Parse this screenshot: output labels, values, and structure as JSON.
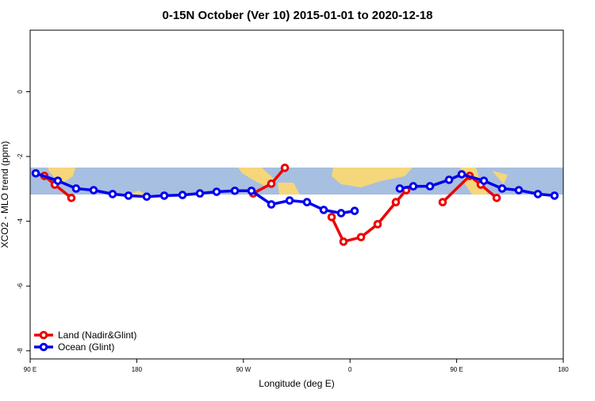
{
  "chart_data": {
    "type": "line",
    "title": "0-15N October (Ver 10)   2015-01-01 to 2020-12-18",
    "x_label": "Longitude (deg E)",
    "y_label": "XCO2 - MLO trend (ppm)",
    "xlim": [
      90,
      540
    ],
    "xticks": [
      {
        "value": 90,
        "label": "90 E"
      },
      {
        "value": 180,
        "label": "180"
      },
      {
        "value": 270,
        "label": "90 W"
      },
      {
        "value": 360,
        "label": "0"
      },
      {
        "value": 450,
        "label": "90 E"
      },
      {
        "value": 540,
        "label": "180"
      }
    ],
    "ylim": [
      -8.25,
      1.9
    ],
    "yticks": [
      0,
      -2,
      -4,
      -6,
      -8
    ],
    "legend": "bottom-left",
    "series": [
      {
        "name": "Land (Nadir&Glint)",
        "color": "#ee0000",
        "x": [
          102,
          110.8,
          124.8,
          null,
          278.2,
          293.6,
          305,
          null,
          344.5,
          354.5,
          369.3,
          383.3,
          398.7,
          407.4,
          null,
          438.2,
          461,
          470.4,
          483.8
        ],
        "values": [
          -2.6,
          -2.87,
          -3.28,
          null,
          -3.14,
          -2.84,
          -2.35,
          null,
          -3.87,
          -4.63,
          -4.49,
          -4.09,
          -3.41,
          -3.04,
          null,
          -3.41,
          -2.6,
          -2.87,
          -3.28
        ]
      },
      {
        "name": "Ocean (Glint)",
        "color": "#0000ee",
        "x": [
          94.7,
          113.4,
          128.8,
          143.6,
          159.6,
          173,
          188.4,
          203.2,
          218.6,
          233.3,
          247.4,
          262.8,
          276.8,
          293.6,
          309,
          323.7,
          337.8,
          352.5,
          363.9,
          null,
          402,
          413.4,
          427.5,
          443.6,
          454.3,
          473,
          488.4,
          502.5,
          518.6,
          532.6
        ],
        "values": [
          -2.52,
          -2.75,
          -2.99,
          -3.04,
          -3.16,
          -3.21,
          -3.24,
          -3.21,
          -3.19,
          -3.14,
          -3.09,
          -3.06,
          -3.06,
          -3.48,
          -3.36,
          -3.41,
          -3.65,
          -3.75,
          -3.68,
          null,
          -2.99,
          -2.92,
          -2.92,
          -2.72,
          -2.55,
          -2.75,
          -2.99,
          -3.04,
          -3.16,
          -3.21
        ]
      }
    ]
  }
}
